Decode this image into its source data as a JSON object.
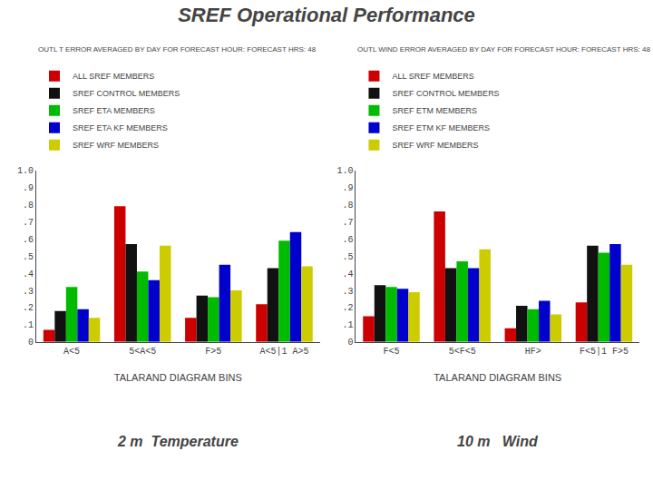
{
  "title": "SREF Operational Performance",
  "chart_data": [
    {
      "type": "bar",
      "subtitle": "OUTL T ERROR AVERAGED BY DAY FOR FORECAST HOUR: FORECAST HRS: 48",
      "x_label": "TALARAND DIAGRAM BINS",
      "annotations": [
        "2 m  Temperature"
      ],
      "categories": [
        "A<5",
        "5<A<5",
        "F>5",
        "A<5|1 A>5"
      ],
      "series": [
        {
          "name": "ALL SREF MEMBERS",
          "color": "#CC0000",
          "values": [
            0.07,
            0.79,
            0.14,
            0.22
          ]
        },
        {
          "name": "SREF CONTROL MEMBERS",
          "color": "#111111",
          "values": [
            0.18,
            0.57,
            0.27,
            0.43
          ]
        },
        {
          "name": "SREF ETA MEMBERS",
          "color": "#00BB00",
          "values": [
            0.32,
            0.41,
            0.26,
            0.59
          ]
        },
        {
          "name": "SREF ETA KF MEMBERS",
          "color": "#0000CC",
          "values": [
            0.19,
            0.36,
            0.45,
            0.64
          ]
        },
        {
          "name": "SREF WRF MEMBERS",
          "color": "#CCCC00",
          "values": [
            0.14,
            0.56,
            0.3,
            0.44
          ]
        }
      ],
      "ylim": [
        0.0,
        1.0
      ],
      "yticks": [
        0,
        {
          "value": 0.1,
          "label": ".1"
        },
        {
          "value": 0.2,
          "label": ".2"
        },
        {
          "value": 0.3,
          "label": ".3"
        },
        {
          "value": 0.4,
          "label": ".4"
        },
        {
          "value": 0.5,
          "label": ".5"
        },
        {
          "value": 0.6,
          "label": ".6"
        },
        {
          "value": 0.7,
          "label": ".7"
        },
        {
          "value": 0.8,
          "label": ".8"
        },
        {
          "value": 0.9,
          "label": ".9"
        },
        {
          "value": 1.0,
          "label": "1.0"
        }
      ],
      "grid": false,
      "legend": "upper left"
    },
    {
      "type": "bar",
      "subtitle": "OUTL WIND ERROR AVERAGED BY DAY FOR FORECAST HOUR: FORECAST HRS: 48",
      "x_label": "TALARAND DIAGRAM BINS",
      "annotations": [
        "10 m   Wind"
      ],
      "categories": [
        "F<5",
        "5<F<5",
        "HF>",
        "F<5|1 F>5"
      ],
      "series": [
        {
          "name": "ALL SREF MEMBERS",
          "color": "#CC0000",
          "values": [
            0.15,
            0.76,
            0.08,
            0.23
          ]
        },
        {
          "name": "SREF CONTROL MEMBERS",
          "color": "#111111",
          "values": [
            0.33,
            0.43,
            0.21,
            0.56
          ]
        },
        {
          "name": "SREF ETM MEMBERS",
          "color": "#00BB00",
          "values": [
            0.32,
            0.47,
            0.19,
            0.52
          ]
        },
        {
          "name": "SREF ETM KF MEMBERS",
          "color": "#0000CC",
          "values": [
            0.31,
            0.43,
            0.24,
            0.57
          ]
        },
        {
          "name": "SREF WRF MEMBERS",
          "color": "#CCCC00",
          "values": [
            0.29,
            0.54,
            0.16,
            0.45
          ]
        }
      ],
      "ylim": [
        0.0,
        1.0
      ],
      "yticks": [
        0,
        {
          "value": 0.1,
          "label": ".1"
        },
        {
          "value": 0.2,
          "label": ".2"
        },
        {
          "value": 0.3,
          "label": ".3"
        },
        {
          "value": 0.4,
          "label": ".4"
        },
        {
          "value": 0.5,
          "label": ".5"
        },
        {
          "value": 0.6,
          "label": ".6"
        },
        {
          "value": 0.7,
          "label": ".7"
        },
        {
          "value": 0.8,
          "label": ".8"
        },
        {
          "value": 0.9,
          "label": ".9"
        },
        {
          "value": 1.0,
          "label": "1.0"
        }
      ],
      "grid": false,
      "legend": "upper left"
    }
  ]
}
